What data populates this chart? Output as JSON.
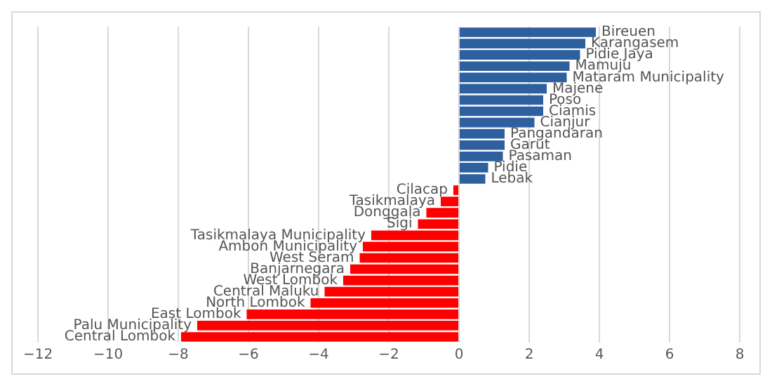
{
  "chart_data": {
    "type": "bar",
    "orientation": "horizontal",
    "categories": [
      "Bireuen",
      "Karangasem",
      "Pidie Jaya",
      "Mamuju",
      "Mataram Municipality",
      "Majene",
      "Poso",
      "Ciamis",
      "Cianjur",
      "Pangandaran",
      "Garut",
      "Pasaman",
      "Pidie",
      "Lebak",
      "Cilacap",
      "Tasikmalaya",
      "Donggala",
      "Sigi",
      "Tasikmalaya Municipality",
      "Ambon Municipality",
      "West Seram",
      "Banjarnegara",
      "West Lombok",
      "Central Maluku",
      "North Lombok",
      "East Lombok",
      "Palu Municipality",
      "Central Lombok"
    ],
    "values": [
      3.9,
      3.6,
      3.45,
      3.15,
      3.07,
      2.5,
      2.4,
      2.4,
      2.15,
      1.3,
      1.3,
      1.25,
      0.83,
      0.75,
      -0.16,
      -0.52,
      -0.93,
      -1.17,
      -2.5,
      -2.74,
      -2.83,
      -3.1,
      -3.3,
      -3.83,
      -4.23,
      -6.05,
      -7.46,
      -7.92
    ],
    "colors": [
      "#2e5f9e",
      "#2e5f9e",
      "#2e5f9e",
      "#2e5f9e",
      "#2e5f9e",
      "#2e5f9e",
      "#2e5f9e",
      "#2e5f9e",
      "#2e5f9e",
      "#2e5f9e",
      "#2e5f9e",
      "#2e5f9e",
      "#2e5f9e",
      "#2e5f9e",
      "#ff0000",
      "#ff0000",
      "#ff0000",
      "#ff0000",
      "#ff0000",
      "#ff0000",
      "#ff0000",
      "#ff0000",
      "#ff0000",
      "#ff0000",
      "#ff0000",
      "#ff0000",
      "#ff0000",
      "#ff0000"
    ],
    "xlim": [
      -12,
      8
    ],
    "xticks": [
      -12,
      -10,
      -8,
      -6,
      -4,
      -2,
      0,
      2,
      4,
      6,
      8
    ],
    "grid": "x",
    "tick_labels": "x"
  }
}
